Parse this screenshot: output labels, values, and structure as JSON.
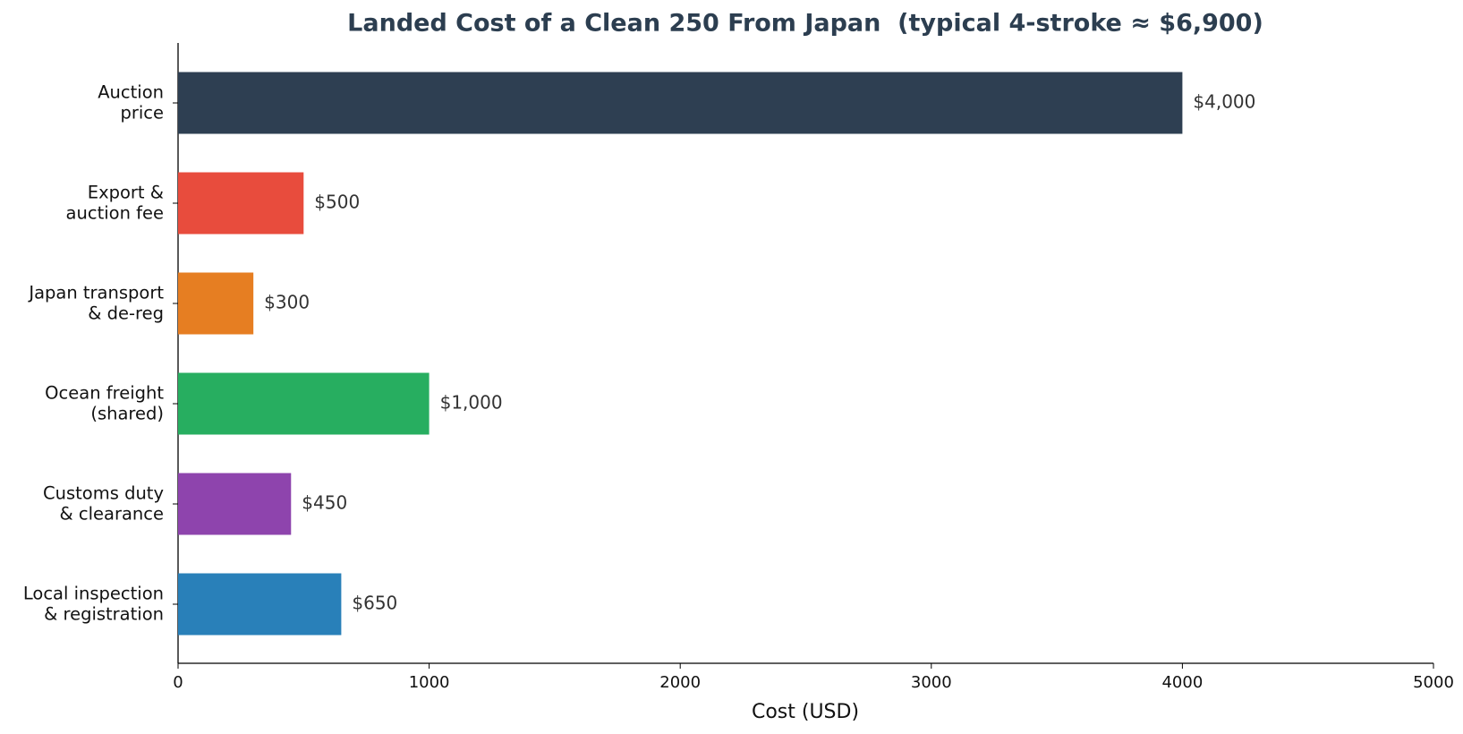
{
  "chart_data": {
    "type": "barh",
    "title": "Landed Cost of a Clean 250 From Japan  (typical 4-stroke ≈ $6,900)",
    "xlabel": "Cost (USD)",
    "categories": [
      "Auction\nprice",
      "Export &\nauction fee",
      "Japan transport\n& de-reg",
      "Ocean freight\n(shared)",
      "Customs duty\n& clearance",
      "Local inspection\n& registration"
    ],
    "values": [
      4000,
      500,
      300,
      1000,
      450,
      650
    ],
    "value_labels": [
      "$4,000",
      "$500",
      "$300",
      "$1,000",
      "$450",
      "$650"
    ],
    "colors": [
      "#2e3f52",
      "#e84c3d",
      "#e67e22",
      "#27ae60",
      "#8e44ad",
      "#2980b9"
    ],
    "xlim": [
      0,
      5000
    ],
    "xticks": [
      0,
      1000,
      2000,
      3000,
      4000,
      5000
    ],
    "grid": false
  }
}
